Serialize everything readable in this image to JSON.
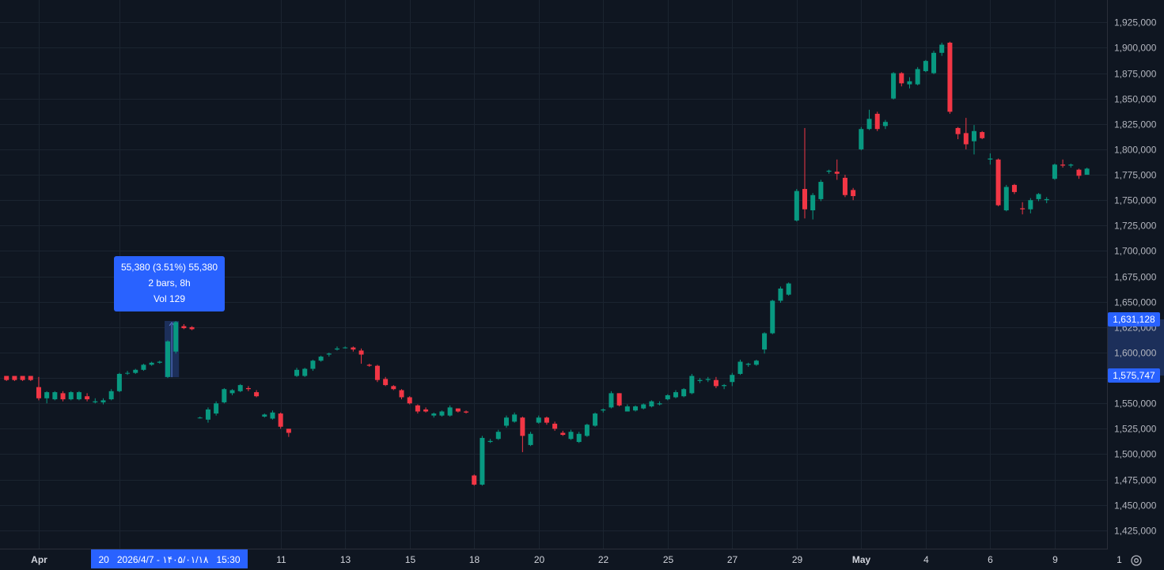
{
  "colors": {
    "background": "#0f1621",
    "grid": "#1b2430",
    "up": "#089981",
    "down": "#f23645",
    "axis_text": "#b2b5be",
    "accent": "#2962ff",
    "range_fill": "#1c2f5a"
  },
  "tooltip": {
    "line1": "55,380 (3.51%) 55,380",
    "line2": "2 bars, 8h",
    "line3": "Vol 129"
  },
  "crosshair_time_label": "20   2026/4/7 - ۱۴۰۵/۰۱/۱۸   15:30",
  "price_badges": {
    "upper": "1,631,128",
    "lower": "1,575,747"
  },
  "settings_icon": "gear-icon",
  "chart_data": {
    "type": "candlestick",
    "title": "",
    "xlabel": "",
    "ylabel": "",
    "ylim": [
      1407000,
      1947000
    ],
    "grid": true,
    "y_ticks": [
      1425000,
      1450000,
      1475000,
      1500000,
      1525000,
      1550000,
      1575000,
      1600000,
      1625000,
      1650000,
      1675000,
      1700000,
      1725000,
      1750000,
      1775000,
      1800000,
      1825000,
      1850000,
      1875000,
      1900000,
      1925000
    ],
    "y_tick_labels": [
      "1,425,000",
      "1,450,000",
      "1,475,000",
      "1,500,000",
      "1,525,000",
      "1,550,000",
      "1,575,000",
      "1,600,000",
      "1,625,000",
      "1,650,000",
      "1,675,000",
      "1,700,000",
      "1,725,000",
      "1,750,000",
      "1,775,000",
      "1,800,000",
      "1,825,000",
      "1,850,000",
      "1,875,000",
      "1,900,000",
      "1,925,000"
    ],
    "x_ticks": [
      {
        "label": "Apr",
        "bar": 4,
        "bold": true
      },
      {
        "label": "20",
        "bar": 14,
        "bold": false
      },
      {
        "label": "11",
        "bar": 34,
        "bold": false
      },
      {
        "label": "13",
        "bar": 42,
        "bold": false
      },
      {
        "label": "15",
        "bar": 50,
        "bold": false
      },
      {
        "label": "18",
        "bar": 58,
        "bold": false
      },
      {
        "label": "20",
        "bar": 66,
        "bold": false
      },
      {
        "label": "22",
        "bar": 74,
        "bold": false
      },
      {
        "label": "25",
        "bar": 82,
        "bold": false
      },
      {
        "label": "27",
        "bar": 90,
        "bold": false
      },
      {
        "label": "29",
        "bar": 98,
        "bold": false
      },
      {
        "label": "May",
        "bar": 106,
        "bold": true
      },
      {
        "label": "4",
        "bar": 114,
        "bold": false
      },
      {
        "label": "6",
        "bar": 122,
        "bold": false
      },
      {
        "label": "9",
        "bar": 130,
        "bold": false
      },
      {
        "label": "1",
        "bar": 138,
        "bold": false
      }
    ],
    "selected_range": {
      "from_bar": 20,
      "to_bar": 21,
      "low": 1575747,
      "high": 1631128
    },
    "candles": [
      [
        1577000,
        1577000,
        1572000,
        1573000
      ],
      [
        1577000,
        1577000,
        1572000,
        1573000
      ],
      [
        1577000,
        1577000,
        1572000,
        1573000
      ],
      [
        1577000,
        1577000,
        1572000,
        1573000
      ],
      [
        1566000,
        1576000,
        1553000,
        1555000
      ],
      [
        1555000,
        1562000,
        1550000,
        1561000
      ],
      [
        1554000,
        1562000,
        1553000,
        1561000
      ],
      [
        1560000,
        1562000,
        1552000,
        1554000
      ],
      [
        1554000,
        1562000,
        1553000,
        1561000
      ],
      [
        1554000,
        1562000,
        1553000,
        1561000
      ],
      [
        1557000,
        1560000,
        1552000,
        1554000
      ],
      [
        1551000,
        1555000,
        1550000,
        1552000
      ],
      [
        1551000,
        1555000,
        1549000,
        1553000
      ],
      [
        1554000,
        1564000,
        1553000,
        1562000
      ],
      [
        1562000,
        1580000,
        1561000,
        1579000
      ],
      [
        1580000,
        1582000,
        1578000,
        1580000
      ],
      [
        1580000,
        1584000,
        1579000,
        1583000
      ],
      [
        1583000,
        1589000,
        1582000,
        1588000
      ],
      [
        1588000,
        1591000,
        1587000,
        1590000
      ],
      [
        1590000,
        1592000,
        1589000,
        1591000
      ],
      [
        1576000,
        1612000,
        1575000,
        1611000
      ],
      [
        1601000,
        1631000,
        1599000,
        1630000
      ],
      [
        1626000,
        1628000,
        1623000,
        1624000
      ],
      [
        1625000,
        1626000,
        1622000,
        1623000
      ],
      [
        1536000,
        1537000,
        1535000,
        1536000
      ],
      [
        1534000,
        1546000,
        1531000,
        1544000
      ],
      [
        1540000,
        1552000,
        1538000,
        1550000
      ],
      [
        1551000,
        1565000,
        1550000,
        1564000
      ],
      [
        1560000,
        1564000,
        1558000,
        1563000
      ],
      [
        1562000,
        1569000,
        1561000,
        1568000
      ],
      [
        1565000,
        1567000,
        1562000,
        1564000
      ],
      [
        1561000,
        1563000,
        1556000,
        1557000
      ],
      [
        1537000,
        1540000,
        1536000,
        1539000
      ],
      [
        1535000,
        1543000,
        1534000,
        1541000
      ],
      [
        1540000,
        1541000,
        1525000,
        1527000
      ],
      [
        1525000,
        1525000,
        1517000,
        1521000
      ],
      [
        1577000,
        1585000,
        1576000,
        1583000
      ],
      [
        1577000,
        1585000,
        1576000,
        1584000
      ],
      [
        1584000,
        1593000,
        1582000,
        1592000
      ],
      [
        1592000,
        1597000,
        1591000,
        1596000
      ],
      [
        1598000,
        1600000,
        1596000,
        1599000
      ],
      [
        1603000,
        1606000,
        1602000,
        1604000
      ],
      [
        1605000,
        1606000,
        1604000,
        1605000
      ],
      [
        1605000,
        1606000,
        1601000,
        1603000
      ],
      [
        1602000,
        1604000,
        1589000,
        1598000
      ],
      [
        1588000,
        1589000,
        1586000,
        1587000
      ],
      [
        1587000,
        1588000,
        1571000,
        1573000
      ],
      [
        1574000,
        1576000,
        1567000,
        1568000
      ],
      [
        1567000,
        1568000,
        1563000,
        1564000
      ],
      [
        1563000,
        1564000,
        1554000,
        1556000
      ],
      [
        1556000,
        1557000,
        1549000,
        1550000
      ],
      [
        1548000,
        1549000,
        1540000,
        1542000
      ],
      [
        1544000,
        1546000,
        1541000,
        1542000
      ],
      [
        1538000,
        1541000,
        1536000,
        1540000
      ],
      [
        1538000,
        1543000,
        1537000,
        1542000
      ],
      [
        1538000,
        1548000,
        1537000,
        1546000
      ],
      [
        1545000,
        1545000,
        1541000,
        1542000
      ],
      [
        1542000,
        1543000,
        1540000,
        1541000
      ],
      [
        1479000,
        1480000,
        1469000,
        1470000
      ],
      [
        1470000,
        1518000,
        1469000,
        1516000
      ],
      [
        1512000,
        1515000,
        1511000,
        1513000
      ],
      [
        1515000,
        1524000,
        1514000,
        1522000
      ],
      [
        1528000,
        1538000,
        1526000,
        1536000
      ],
      [
        1532000,
        1541000,
        1531000,
        1539000
      ],
      [
        1536000,
        1537000,
        1502000,
        1518000
      ],
      [
        1509000,
        1522000,
        1508000,
        1520000
      ],
      [
        1531000,
        1538000,
        1530000,
        1536000
      ],
      [
        1536000,
        1537000,
        1529000,
        1531000
      ],
      [
        1530000,
        1532000,
        1523000,
        1525000
      ],
      [
        1521000,
        1523000,
        1518000,
        1519000
      ],
      [
        1515000,
        1524000,
        1514000,
        1522000
      ],
      [
        1512000,
        1522000,
        1511000,
        1520000
      ],
      [
        1518000,
        1530000,
        1517000,
        1529000
      ],
      [
        1528000,
        1541000,
        1527000,
        1540000
      ],
      [
        1543000,
        1545000,
        1541000,
        1544000
      ],
      [
        1546000,
        1562000,
        1545000,
        1560000
      ],
      [
        1560000,
        1560000,
        1547000,
        1548000
      ],
      [
        1542000,
        1549000,
        1542000,
        1547000
      ],
      [
        1543000,
        1548000,
        1542000,
        1547000
      ],
      [
        1545000,
        1550000,
        1544000,
        1549000
      ],
      [
        1547000,
        1553000,
        1546000,
        1552000
      ],
      [
        1549000,
        1552000,
        1548000,
        1550000
      ],
      [
        1554000,
        1559000,
        1553000,
        1558000
      ],
      [
        1556000,
        1563000,
        1555000,
        1561000
      ],
      [
        1557000,
        1565000,
        1556000,
        1564000
      ],
      [
        1560000,
        1579000,
        1559000,
        1577000
      ],
      [
        1572000,
        1575000,
        1570000,
        1573000
      ],
      [
        1573000,
        1576000,
        1571000,
        1574000
      ],
      [
        1573000,
        1576000,
        1565000,
        1567000
      ],
      [
        1567000,
        1569000,
        1564000,
        1568000
      ],
      [
        1571000,
        1580000,
        1567000,
        1578000
      ],
      [
        1579000,
        1593000,
        1578000,
        1591000
      ],
      [
        1588000,
        1590000,
        1586000,
        1589000
      ],
      [
        1588000,
        1593000,
        1587000,
        1592000
      ],
      [
        1603000,
        1620000,
        1599000,
        1619000
      ],
      [
        1619000,
        1652000,
        1618000,
        1651000
      ],
      [
        1651000,
        1665000,
        1649000,
        1663000
      ],
      [
        1657000,
        1669000,
        1656000,
        1668000
      ],
      [
        1730000,
        1761000,
        1729000,
        1759000
      ],
      [
        1761000,
        1821000,
        1732000,
        1741000
      ],
      [
        1740000,
        1757000,
        1731000,
        1755000
      ],
      [
        1751000,
        1770000,
        1749000,
        1768000
      ],
      [
        1778000,
        1780000,
        1776000,
        1779000
      ],
      [
        1778000,
        1790000,
        1770000,
        1776000
      ],
      [
        1772000,
        1775000,
        1753000,
        1755000
      ],
      [
        1760000,
        1762000,
        1750000,
        1754000
      ],
      [
        1800000,
        1822000,
        1799000,
        1820000
      ],
      [
        1820000,
        1839000,
        1819000,
        1830000
      ],
      [
        1835000,
        1837000,
        1818000,
        1820000
      ],
      [
        1823000,
        1829000,
        1820000,
        1827000
      ],
      [
        1850000,
        1876000,
        1849000,
        1875000
      ],
      [
        1875000,
        1876000,
        1862000,
        1865000
      ],
      [
        1864000,
        1871000,
        1860000,
        1867000
      ],
      [
        1864000,
        1881000,
        1863000,
        1879000
      ],
      [
        1877000,
        1888000,
        1876000,
        1887000
      ],
      [
        1875000,
        1897000,
        1874000,
        1895000
      ],
      [
        1895000,
        1905000,
        1892000,
        1903000
      ],
      [
        1905000,
        1906000,
        1835000,
        1837000
      ],
      [
        1821000,
        1822000,
        1810000,
        1815000
      ],
      [
        1816000,
        1831000,
        1800000,
        1805000
      ],
      [
        1808000,
        1824000,
        1795000,
        1818000
      ],
      [
        1817000,
        1818000,
        1810000,
        1811000
      ],
      [
        1790000,
        1796000,
        1785000,
        1791000
      ],
      [
        1790000,
        1791000,
        1744000,
        1745000
      ],
      [
        1740000,
        1765000,
        1739000,
        1763000
      ],
      [
        1765000,
        1766000,
        1756000,
        1758000
      ],
      [
        1742000,
        1748000,
        1736000,
        1741000
      ],
      [
        1741000,
        1752000,
        1737000,
        1750000
      ],
      [
        1751000,
        1757000,
        1749000,
        1756000
      ],
      [
        1750000,
        1753000,
        1747000,
        1751000
      ],
      [
        1771000,
        1786000,
        1770000,
        1785000
      ],
      [
        1785000,
        1790000,
        1782000,
        1784000
      ],
      [
        1784000,
        1786000,
        1782000,
        1785000
      ],
      [
        1780000,
        1781000,
        1771000,
        1774000
      ],
      [
        1775000,
        1782000,
        1775000,
        1781000
      ]
    ]
  }
}
